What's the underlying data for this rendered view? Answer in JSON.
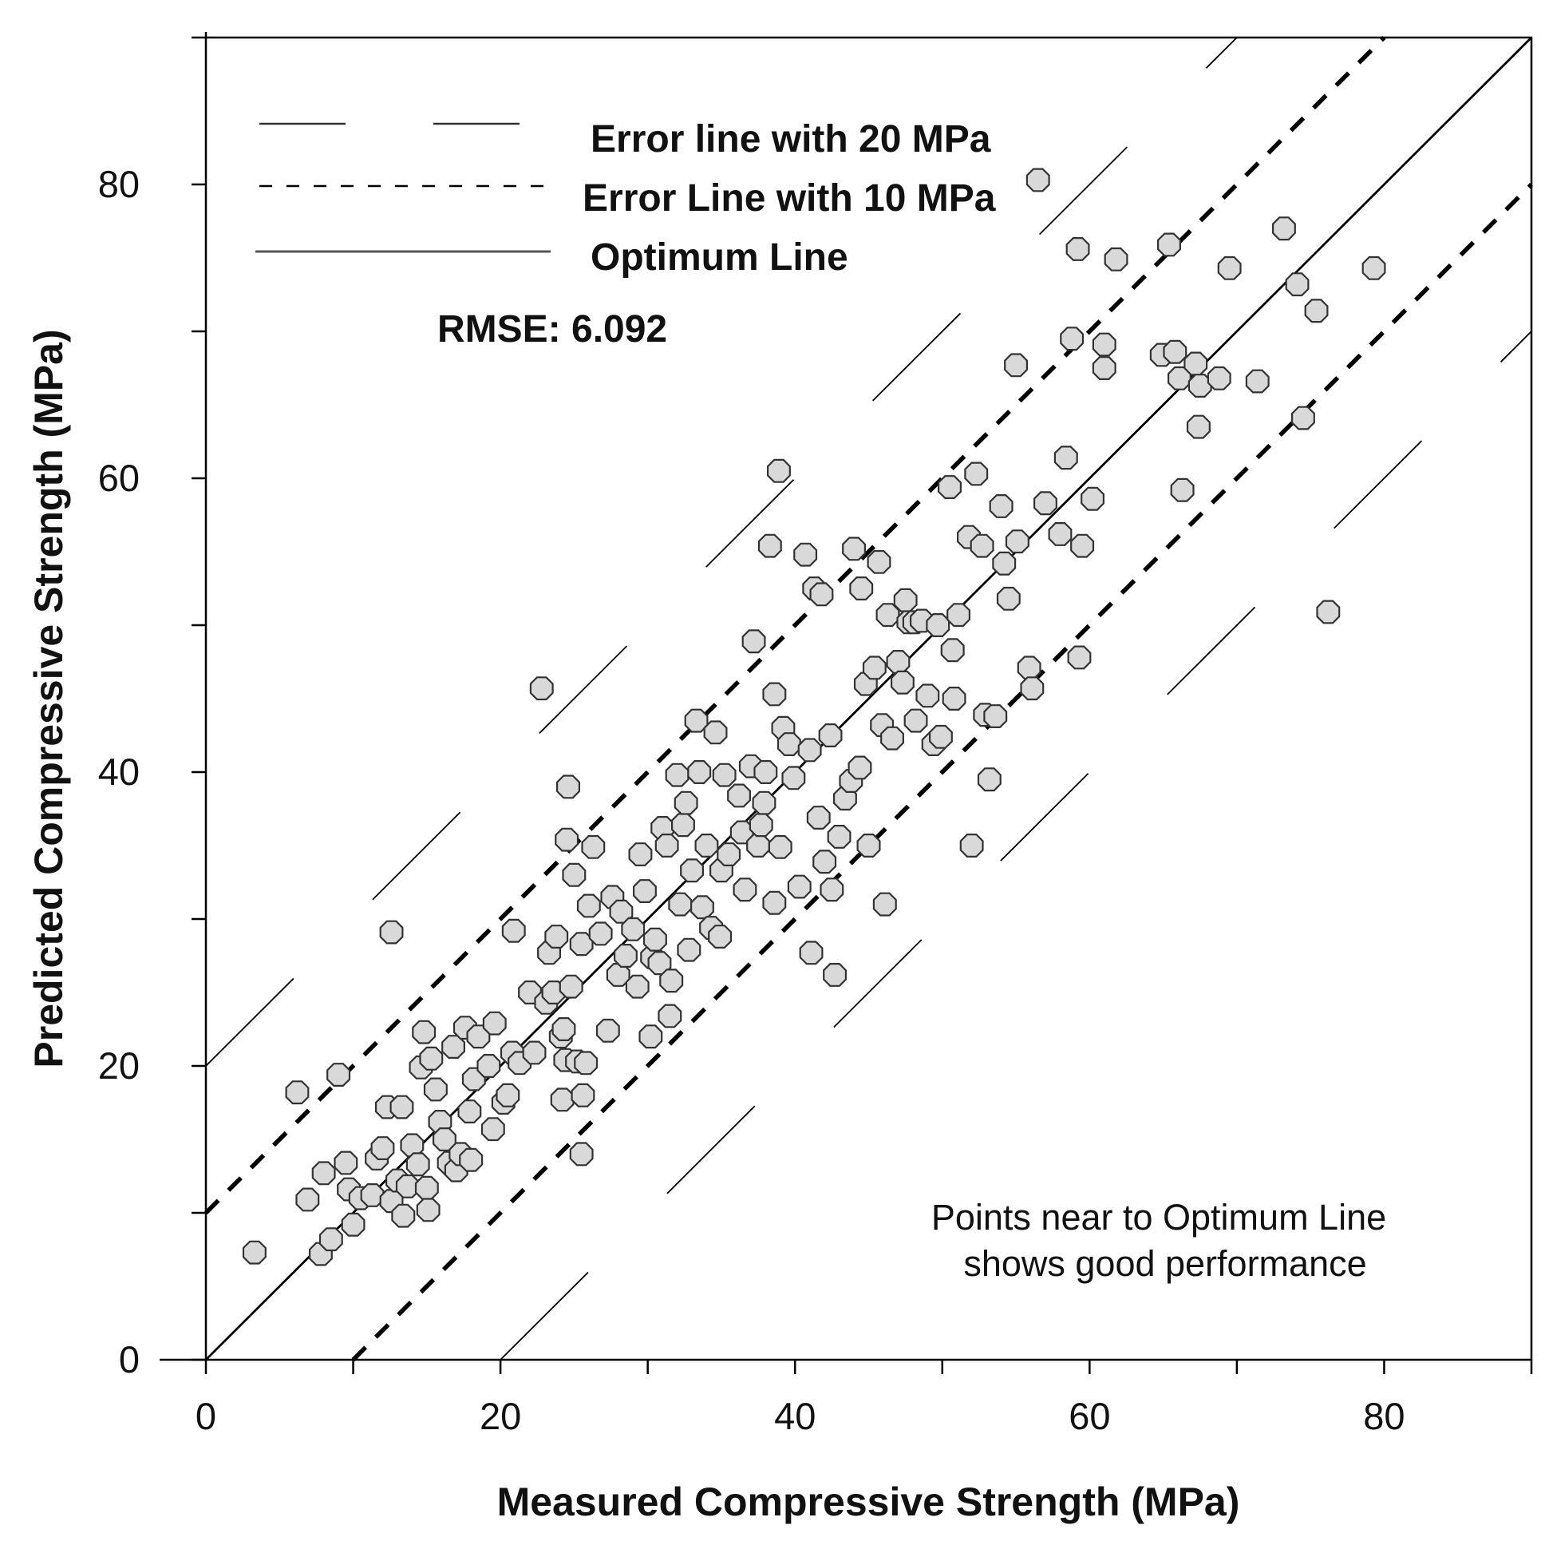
{
  "chart_data": {
    "type": "scatter",
    "title": "",
    "xlabel": "Measured Compressive Strength (MPa)",
    "ylabel": "Predicted Compressive Strength (MPa)",
    "xlim": [
      0,
      90
    ],
    "ylim": [
      0,
      90
    ],
    "x_ticks": [
      0,
      20,
      40,
      60,
      80
    ],
    "y_ticks": [
      0,
      20,
      40,
      60,
      80
    ],
    "grid": false,
    "rmse_label": "RMSE: 6.092",
    "note_lines": [
      "Points near to Optimum Line",
      "shows good performance"
    ],
    "legend": {
      "placement": "top-left",
      "entries": [
        {
          "label": "Error line with 20 MPa",
          "style": "long-dash",
          "offset": 20
        },
        {
          "label": "Error Line with 10 MPa",
          "style": "short-dash",
          "offset": 10
        },
        {
          "label": "Optimum Line",
          "style": "solid",
          "offset": 0
        }
      ]
    },
    "series": [
      {
        "name": "Observations",
        "marker": "octagon",
        "points": [
          [
            3.3,
            7.3
          ],
          [
            6.2,
            18.2
          ],
          [
            6.9,
            10.9
          ],
          [
            7.8,
            7.2
          ],
          [
            8.0,
            12.7
          ],
          [
            8.5,
            8.2
          ],
          [
            9.0,
            19.4
          ],
          [
            9.5,
            13.4
          ],
          [
            9.7,
            11.6
          ],
          [
            10.0,
            9.2
          ],
          [
            10.5,
            11.0
          ],
          [
            11.3,
            11.2
          ],
          [
            11.6,
            13.7
          ],
          [
            12.0,
            14.4
          ],
          [
            12.3,
            17.2
          ],
          [
            12.6,
            10.8
          ],
          [
            12.6,
            29.1
          ],
          [
            13.0,
            12.2
          ],
          [
            13.3,
            17.2
          ],
          [
            13.4,
            9.8
          ],
          [
            13.7,
            11.8
          ],
          [
            14.0,
            14.6
          ],
          [
            14.4,
            13.3
          ],
          [
            14.6,
            19.9
          ],
          [
            14.8,
            22.3
          ],
          [
            15.0,
            11.7
          ],
          [
            15.1,
            10.2
          ],
          [
            15.3,
            20.5
          ],
          [
            15.6,
            18.4
          ],
          [
            15.9,
            16.2
          ],
          [
            16.2,
            15.0
          ],
          [
            16.5,
            13.4
          ],
          [
            16.8,
            21.3
          ],
          [
            17.0,
            12.9
          ],
          [
            17.3,
            14.0
          ],
          [
            17.6,
            22.6
          ],
          [
            17.9,
            16.9
          ],
          [
            18.0,
            13.6
          ],
          [
            18.2,
            19.1
          ],
          [
            18.5,
            22.0
          ],
          [
            19.2,
            20.0
          ],
          [
            19.5,
            15.7
          ],
          [
            19.6,
            22.9
          ],
          [
            20.2,
            17.5
          ],
          [
            20.5,
            18.0
          ],
          [
            20.8,
            20.9
          ],
          [
            20.9,
            29.2
          ],
          [
            21.3,
            20.2
          ],
          [
            22.0,
            25.0
          ],
          [
            22.3,
            20.9
          ],
          [
            22.8,
            45.7
          ],
          [
            23.1,
            24.3
          ],
          [
            23.3,
            27.7
          ],
          [
            23.6,
            25.0
          ],
          [
            23.8,
            28.8
          ],
          [
            24.1,
            22.0
          ],
          [
            24.2,
            17.7
          ],
          [
            24.3,
            22.5
          ],
          [
            24.4,
            20.4
          ],
          [
            24.5,
            35.4
          ],
          [
            24.6,
            39.0
          ],
          [
            24.8,
            25.4
          ],
          [
            25.0,
            33.0
          ],
          [
            25.2,
            20.3
          ],
          [
            25.5,
            14.0
          ],
          [
            25.5,
            28.3
          ],
          [
            25.6,
            18.0
          ],
          [
            25.8,
            20.2
          ],
          [
            26.0,
            30.9
          ],
          [
            26.3,
            34.9
          ],
          [
            26.8,
            29.0
          ],
          [
            27.3,
            22.4
          ],
          [
            27.6,
            31.5
          ],
          [
            28.0,
            26.2
          ],
          [
            28.2,
            30.5
          ],
          [
            28.5,
            27.5
          ],
          [
            29.0,
            29.3
          ],
          [
            29.3,
            25.4
          ],
          [
            29.5,
            34.4
          ],
          [
            29.8,
            31.9
          ],
          [
            30.2,
            22.0
          ],
          [
            30.3,
            27.4
          ],
          [
            30.5,
            28.6
          ],
          [
            30.8,
            27.0
          ],
          [
            31.0,
            36.2
          ],
          [
            31.3,
            35.0
          ],
          [
            31.5,
            23.4
          ],
          [
            31.6,
            25.8
          ],
          [
            32.0,
            39.8
          ],
          [
            32.2,
            31.0
          ],
          [
            32.4,
            36.4
          ],
          [
            32.6,
            37.9
          ],
          [
            32.8,
            27.9
          ],
          [
            33.0,
            33.3
          ],
          [
            33.3,
            43.5
          ],
          [
            33.5,
            40.0
          ],
          [
            33.7,
            30.8
          ],
          [
            34.0,
            35.0
          ],
          [
            34.3,
            29.4
          ],
          [
            34.6,
            42.7
          ],
          [
            34.9,
            28.8
          ],
          [
            35.0,
            33.3
          ],
          [
            35.2,
            39.8
          ],
          [
            35.5,
            34.4
          ],
          [
            36.2,
            38.4
          ],
          [
            36.4,
            35.9
          ],
          [
            36.6,
            32.0
          ],
          [
            37.0,
            40.4
          ],
          [
            37.2,
            48.9
          ],
          [
            37.5,
            35.0
          ],
          [
            37.7,
            36.4
          ],
          [
            37.9,
            37.9
          ],
          [
            38.0,
            40.0
          ],
          [
            38.3,
            55.4
          ],
          [
            38.6,
            45.3
          ],
          [
            38.6,
            31.1
          ],
          [
            38.9,
            60.5
          ],
          [
            39.0,
            34.9
          ],
          [
            39.2,
            43.0
          ],
          [
            39.6,
            41.9
          ],
          [
            39.9,
            39.6
          ],
          [
            40.3,
            32.2
          ],
          [
            40.7,
            54.8
          ],
          [
            41.0,
            41.5
          ],
          [
            41.1,
            27.7
          ],
          [
            41.3,
            52.5
          ],
          [
            41.6,
            36.9
          ],
          [
            41.8,
            52.1
          ],
          [
            42.0,
            33.9
          ],
          [
            42.4,
            42.5
          ],
          [
            42.5,
            32.0
          ],
          [
            42.7,
            26.2
          ],
          [
            43.0,
            35.6
          ],
          [
            43.4,
            38.2
          ],
          [
            43.8,
            39.4
          ],
          [
            44.0,
            55.2
          ],
          [
            44.4,
            40.3
          ],
          [
            44.5,
            52.5
          ],
          [
            44.8,
            46.0
          ],
          [
            45.0,
            35.0
          ],
          [
            45.4,
            47.1
          ],
          [
            45.7,
            54.3
          ],
          [
            45.9,
            43.2
          ],
          [
            46.1,
            31.0
          ],
          [
            46.3,
            50.7
          ],
          [
            46.6,
            42.3
          ],
          [
            47.0,
            47.5
          ],
          [
            47.3,
            46.1
          ],
          [
            47.5,
            51.7
          ],
          [
            47.7,
            50.2
          ],
          [
            48.1,
            50.2
          ],
          [
            48.2,
            43.5
          ],
          [
            48.6,
            50.3
          ],
          [
            49.0,
            45.2
          ],
          [
            49.4,
            41.9
          ],
          [
            49.7,
            50.0
          ],
          [
            49.9,
            42.4
          ],
          [
            50.5,
            59.4
          ],
          [
            50.7,
            48.3
          ],
          [
            50.8,
            45.0
          ],
          [
            51.1,
            50.7
          ],
          [
            51.8,
            56.0
          ],
          [
            52.0,
            35.0
          ],
          [
            52.3,
            60.3
          ],
          [
            52.7,
            55.4
          ],
          [
            52.9,
            43.9
          ],
          [
            53.2,
            39.5
          ],
          [
            53.6,
            43.8
          ],
          [
            54.0,
            58.1
          ],
          [
            54.2,
            54.2
          ],
          [
            54.5,
            51.8
          ],
          [
            55.0,
            67.7
          ],
          [
            55.1,
            55.7
          ],
          [
            55.9,
            47.1
          ],
          [
            56.1,
            45.7
          ],
          [
            56.5,
            80.3
          ],
          [
            57.0,
            58.3
          ],
          [
            58.0,
            56.2
          ],
          [
            58.4,
            61.4
          ],
          [
            58.8,
            69.5
          ],
          [
            59.2,
            75.6
          ],
          [
            59.3,
            47.8
          ],
          [
            59.5,
            55.4
          ],
          [
            60.2,
            58.6
          ],
          [
            61.0,
            69.1
          ],
          [
            61.0,
            67.5
          ],
          [
            61.8,
            74.9
          ],
          [
            64.9,
            68.4
          ],
          [
            65.4,
            75.9
          ],
          [
            65.8,
            68.6
          ],
          [
            66.1,
            66.8
          ],
          [
            66.3,
            59.2
          ],
          [
            67.2,
            67.8
          ],
          [
            67.4,
            63.5
          ],
          [
            67.5,
            66.3
          ],
          [
            68.8,
            66.8
          ],
          [
            69.5,
            74.3
          ],
          [
            71.4,
            66.6
          ],
          [
            73.2,
            77.0
          ],
          [
            74.1,
            73.2
          ],
          [
            74.5,
            64.1
          ],
          [
            75.4,
            71.4
          ],
          [
            76.2,
            50.9
          ],
          [
            79.3,
            74.3
          ]
        ]
      }
    ]
  }
}
